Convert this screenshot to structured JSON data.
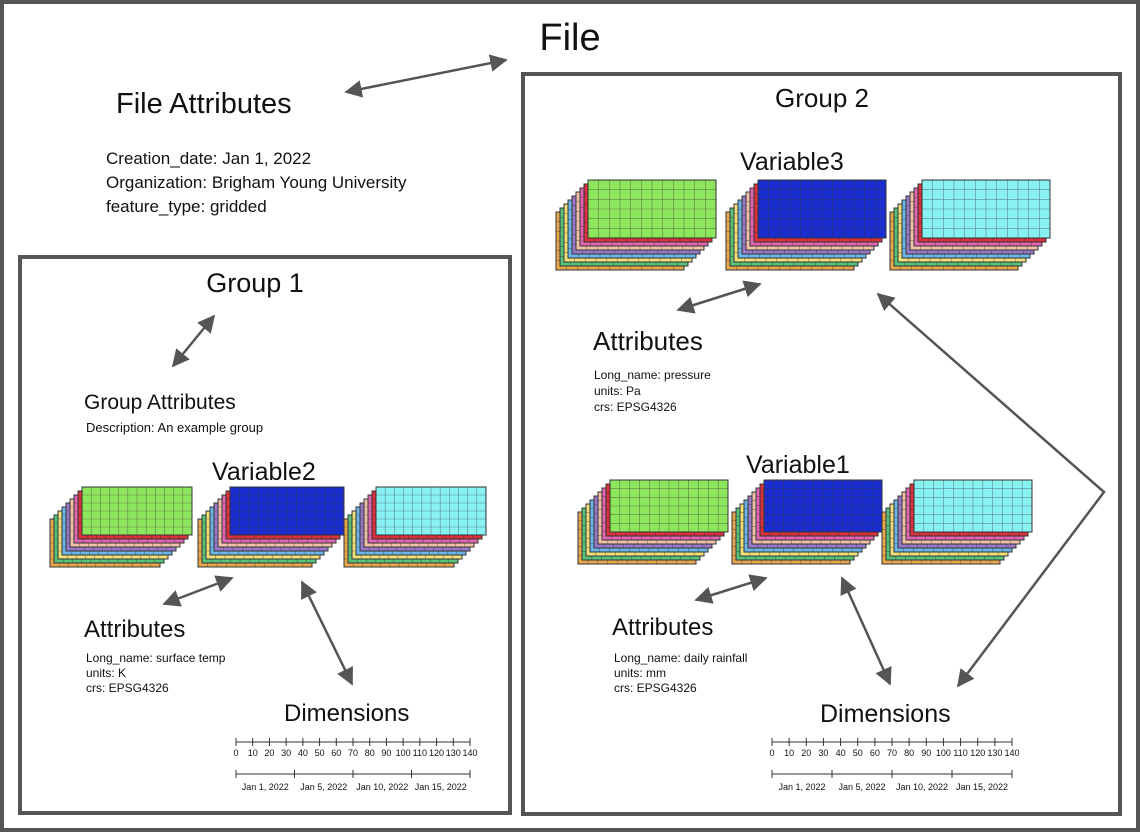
{
  "file": {
    "title": "File",
    "attributes_title": "File Attributes",
    "attributes": [
      "Creation_date: Jan 1, 2022",
      "Organization: Brigham Young University",
      "feature_type: gridded"
    ]
  },
  "group1": {
    "title": "Group 1",
    "attributes_title": "Group Attributes",
    "attributes": [
      "Description: An example group"
    ],
    "variable_title": "Variable2",
    "var_attr_title": "Attributes",
    "var_attrs": [
      "Long_name: surface temp",
      "units: K",
      "crs: EPSG4326"
    ],
    "dimensions_title": "Dimensions"
  },
  "group2": {
    "title": "Group 2",
    "var3_title": "Variable3",
    "var3_attr_title": "Attributes",
    "var3_attrs": [
      "Long_name: pressure",
      "units: Pa",
      "crs: EPSG4326"
    ],
    "var1_title": "Variable1",
    "var1_attr_title": "Attributes",
    "var1_attrs": [
      "Long_name: daily rainfall",
      "units: mm",
      "crs: EPSG4326"
    ],
    "dimensions_title": "Dimensions"
  },
  "dimension_axis": {
    "numbers": [
      "0",
      "10",
      "20",
      "30",
      "40",
      "50",
      "60",
      "70",
      "80",
      "90",
      "100",
      "110",
      "120",
      "130",
      "140"
    ],
    "dates": [
      "Jan 1, 2022",
      "Jan 5, 2022",
      "Jan 10, 2022",
      "Jan 15, 2022"
    ]
  },
  "colors": {
    "green": "#8ee65e",
    "blue": "#1a2ecf",
    "cyan": "#88f2f2",
    "stack": [
      "#d9323c",
      "#e066b2",
      "#f0c0a8",
      "#9a78c8",
      "#6bb6e8",
      "#f0e07a",
      "#57c27a",
      "#e8a84a"
    ]
  }
}
